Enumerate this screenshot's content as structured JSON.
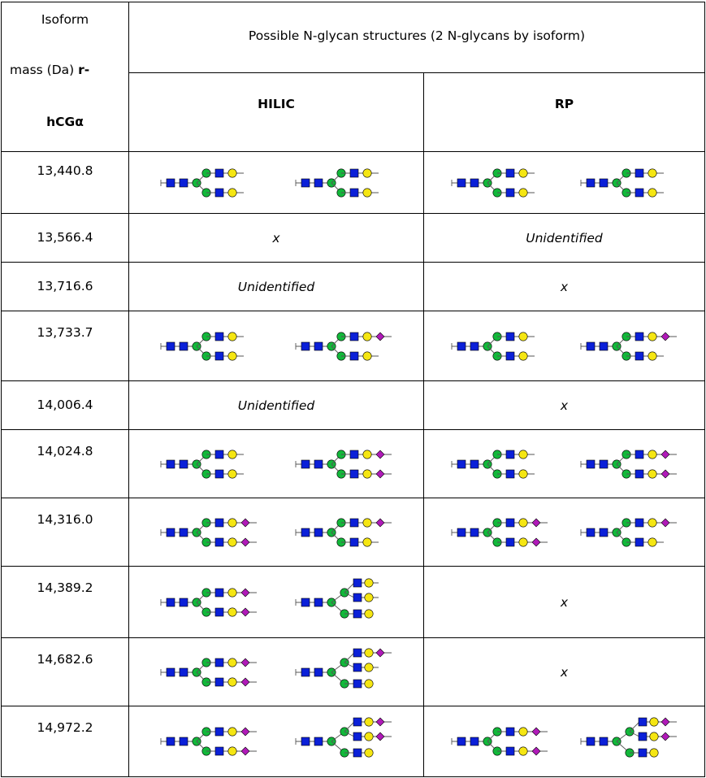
{
  "header": {
    "isoform_line1": "Isoform",
    "isoform_line2_a": "mass (Da) ",
    "isoform_line2_b": "r-",
    "isoform_line3": "hCGα",
    "structures": "Possible N-glycan structures (2 N-glycans by isoform)",
    "hilic": "HILIC",
    "rp": "RP"
  },
  "rows": [
    {
      "mass": "13,440.8",
      "hilic": "",
      "rp": "",
      "hilic_glycans": [
        "biantennary-galactosylated",
        "biantennary-galactosylated"
      ],
      "rp_glycans": [
        "biantennary-galactosylated",
        "biantennary-galactosylated"
      ]
    },
    {
      "mass": "13,566.4",
      "hilic": "x",
      "rp": "Unidentified"
    },
    {
      "mass": "13,716.6",
      "hilic": "Unidentified",
      "rp": "x"
    },
    {
      "mass": "13,733.7",
      "hilic": "",
      "rp": "",
      "hilic_glycans": [
        "biantennary-galactosylated",
        "biantennary-monosialylated"
      ],
      "rp_glycans": [
        "biantennary-galactosylated",
        "biantennary-monosialylated"
      ]
    },
    {
      "mass": "14,006.4",
      "hilic": "Unidentified",
      "rp": "x"
    },
    {
      "mass": "14,024.8",
      "hilic": "",
      "rp": "",
      "hilic_glycans": [
        "biantennary-galactosylated",
        "biantennary-disialylated"
      ],
      "rp_glycans": [
        "biantennary-galactosylated",
        "biantennary-disialylated"
      ]
    },
    {
      "mass": "14,316.0",
      "hilic": "",
      "rp": "",
      "hilic_glycans": [
        "biantennary-disialylated",
        "biantennary-monosialylated"
      ],
      "rp_glycans": [
        "biantennary-disialylated",
        "biantennary-monosialylated"
      ]
    },
    {
      "mass": "14,389.2",
      "hilic": "",
      "rp": "x",
      "hilic_glycans": [
        "biantennary-disialylated",
        "triantennary-galactosylated"
      ]
    },
    {
      "mass": "14,682.6",
      "hilic": "",
      "rp": "x",
      "hilic_glycans": [
        "biantennary-disialylated",
        "triantennary-monosialylated"
      ]
    },
    {
      "mass": "14,972.2",
      "hilic": "",
      "rp": "",
      "hilic_glycans": [
        "biantennary-disialylated",
        "triantennary-disialylated"
      ],
      "rp_glycans": [
        "biantennary-disialylated",
        "triantennary-disialylated"
      ]
    }
  ],
  "colors": {
    "glcnac": "#0b20d8",
    "mannose": "#12b83a",
    "galactose": "#f5e612",
    "sialic_acid": "#b01ab8",
    "border": "#000000"
  },
  "icons": {
    "glcnac": "blue-square-icon",
    "mannose": "green-circle-icon",
    "galactose": "yellow-circle-icon",
    "sialic_acid": "purple-diamond-icon"
  }
}
